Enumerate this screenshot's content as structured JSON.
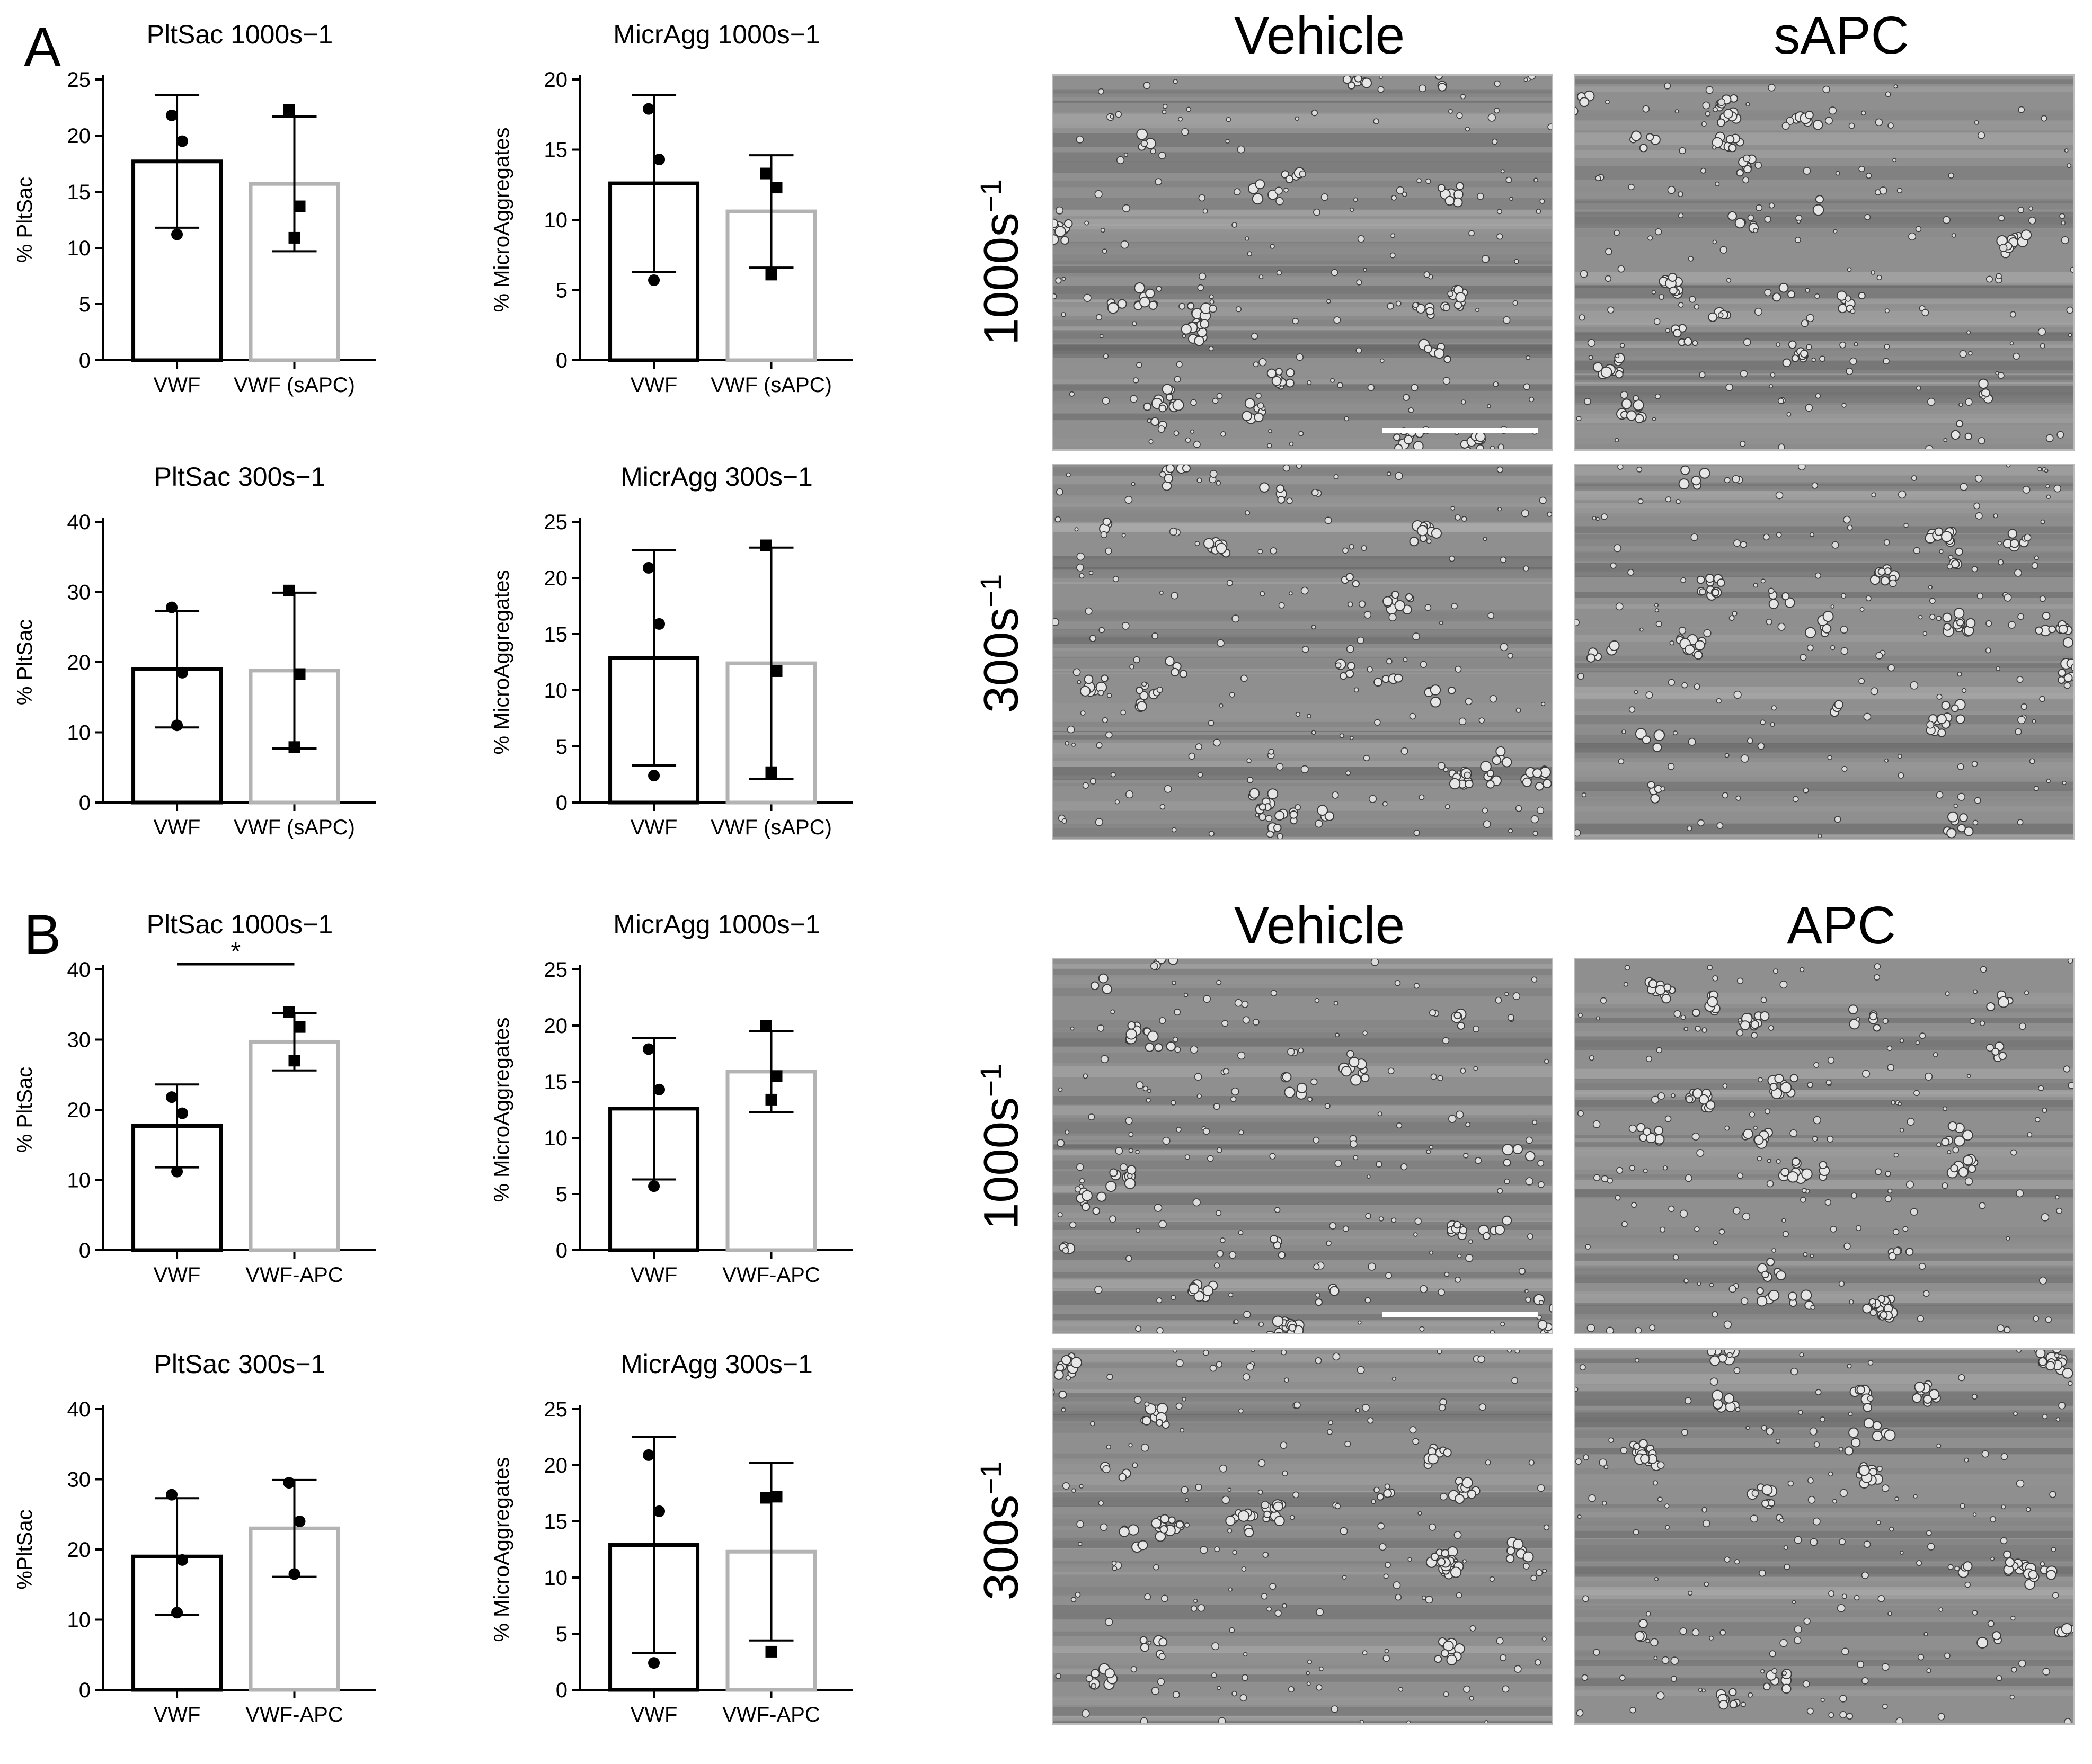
{
  "panel_labels": [
    "A",
    "B"
  ],
  "colors": {
    "vehicle_bar": "#000000",
    "treated_bar": "#b3b3b3",
    "scalebar": "#ffffff"
  },
  "micrographs": {
    "A": {
      "columns": [
        "Vehicle",
        "sAPC"
      ],
      "rows": [
        "1000s",
        "300s"
      ],
      "row_sup": "−1"
    },
    "B": {
      "columns": [
        "Vehicle",
        "APC"
      ],
      "rows": [
        "1000s",
        "300s"
      ],
      "row_sup": "−1"
    }
  },
  "chart_data": [
    {
      "panel": "A",
      "type": "bar",
      "title": "PltSac 1000s−1",
      "ylabel": "% PltSac",
      "categories": [
        "VWF",
        "VWF (sAPC)"
      ],
      "values": [
        17.7,
        15.7
      ],
      "errors": [
        5.9,
        6.0
      ],
      "points": [
        [
          21.8,
          19.5,
          11.2
        ],
        [
          22.3,
          13.7,
          10.9
        ]
      ],
      "markers": [
        "circle",
        "square"
      ],
      "ylim": [
        0,
        25
      ],
      "yticks": [
        0,
        5,
        10,
        15,
        20,
        25
      ],
      "significance": ""
    },
    {
      "panel": "A",
      "type": "bar",
      "title": "MicrAgg 1000s−1",
      "ylabel": "% MicroAggregates",
      "categories": [
        "VWF",
        "VWF (sAPC)"
      ],
      "values": [
        12.6,
        10.6
      ],
      "errors": [
        6.3,
        4.0
      ],
      "points": [
        [
          17.9,
          14.3,
          5.7
        ],
        [
          13.3,
          12.3,
          6.1
        ]
      ],
      "markers": [
        "circle",
        "square"
      ],
      "ylim": [
        0,
        20
      ],
      "yticks": [
        0,
        5,
        10,
        15,
        20
      ],
      "significance": ""
    },
    {
      "panel": "A",
      "type": "bar",
      "title": "PltSac 300s−1",
      "ylabel": "% PltSac",
      "categories": [
        "VWF",
        "VWF (sAPC)"
      ],
      "values": [
        19.0,
        18.8
      ],
      "errors": [
        8.3,
        11.1
      ],
      "points": [
        [
          27.8,
          18.5,
          11.0
        ],
        [
          30.2,
          18.3,
          7.9
        ]
      ],
      "markers": [
        "circle",
        "square"
      ],
      "ylim": [
        0,
        40
      ],
      "yticks": [
        0,
        10,
        20,
        30,
        40
      ],
      "significance": ""
    },
    {
      "panel": "A",
      "type": "bar",
      "title": "MicrAgg 300s−1",
      "ylabel": "% MicroAggregates",
      "categories": [
        "VWF",
        "VWF (sAPC)"
      ],
      "values": [
        12.9,
        12.4
      ],
      "errors": [
        9.6,
        10.3
      ],
      "points": [
        [
          20.9,
          15.9,
          2.4
        ],
        [
          22.9,
          11.7,
          2.7
        ]
      ],
      "markers": [
        "circle",
        "square"
      ],
      "ylim": [
        0,
        25
      ],
      "yticks": [
        0,
        5,
        10,
        15,
        20,
        25
      ],
      "significance": ""
    },
    {
      "panel": "B",
      "type": "bar",
      "title": "PltSac 1000s−1",
      "ylabel": "% PltSac",
      "categories": [
        "VWF",
        "VWF-APC"
      ],
      "values": [
        17.7,
        29.7
      ],
      "errors": [
        5.9,
        4.1
      ],
      "points": [
        [
          21.8,
          19.5,
          11.2
        ],
        [
          33.9,
          31.8,
          27.0
        ]
      ],
      "markers": [
        "circle",
        "square"
      ],
      "ylim": [
        0,
        40
      ],
      "yticks": [
        0,
        10,
        20,
        30,
        40
      ],
      "significance": "*"
    },
    {
      "panel": "B",
      "type": "bar",
      "title": "MicrAgg 1000s−1",
      "ylabel": "% MicroAggregates",
      "categories": [
        "VWF",
        "VWF-APC"
      ],
      "values": [
        12.6,
        15.9
      ],
      "errors": [
        6.3,
        3.6
      ],
      "points": [
        [
          17.9,
          14.3,
          5.7
        ],
        [
          20.0,
          15.5,
          13.4
        ]
      ],
      "markers": [
        "circle",
        "square"
      ],
      "ylim": [
        0,
        25
      ],
      "yticks": [
        0,
        5,
        10,
        15,
        20,
        25
      ],
      "significance": ""
    },
    {
      "panel": "B",
      "type": "bar",
      "title": "PltSac 300s−1",
      "ylabel": "%PltSac",
      "categories": [
        "VWF",
        "VWF-APC"
      ],
      "values": [
        19.0,
        23.0
      ],
      "errors": [
        8.3,
        6.9
      ],
      "points": [
        [
          27.8,
          18.5,
          11.0
        ],
        [
          29.5,
          24.0,
          16.5
        ]
      ],
      "markers": [
        "circle",
        "circle"
      ],
      "ylim": [
        0,
        40
      ],
      "yticks": [
        0,
        10,
        20,
        30,
        40
      ],
      "significance": ""
    },
    {
      "panel": "B",
      "type": "bar",
      "title": "MicrAgg 300s−1",
      "ylabel": "% MicroAggregates",
      "categories": [
        "VWF",
        "VWF-APC"
      ],
      "values": [
        12.9,
        12.3
      ],
      "errors": [
        9.6,
        7.9
      ],
      "points": [
        [
          20.9,
          15.9,
          2.4
        ],
        [
          17.1,
          17.2,
          3.4
        ]
      ],
      "markers": [
        "circle",
        "square"
      ],
      "ylim": [
        0,
        25
      ],
      "yticks": [
        0,
        5,
        10,
        15,
        20,
        25
      ],
      "significance": ""
    }
  ]
}
